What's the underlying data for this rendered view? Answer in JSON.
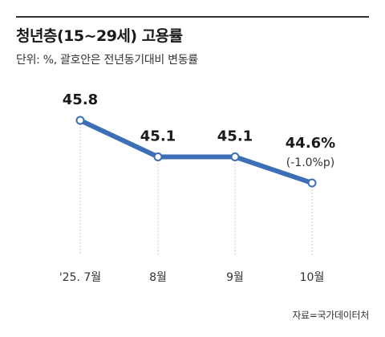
{
  "title": "청년층(15~29세) 고용률",
  "subtitle": "단위: %, 괄호안은 전년동기대비 변동률",
  "source": "자료=국가데이터처",
  "colors": {
    "line": "#3c6fb5",
    "marker_fill": "#ffffff",
    "guide": "#c8c8c8",
    "text": "#222222"
  },
  "chart_data": {
    "type": "line",
    "title": "청년층(15~29세) 고용률",
    "categories": [
      "'25. 7월",
      "8월",
      "9월",
      "10월"
    ],
    "values": [
      45.8,
      45.1,
      45.1,
      44.6
    ],
    "data_labels": [
      "45.8",
      "45.1",
      "45.1",
      "44.6%"
    ],
    "annotations": [
      {
        "index": 3,
        "text": "(-1.0%p)"
      }
    ],
    "ylim": [
      43.9,
      46.1
    ],
    "grid": false,
    "xlabel": "",
    "ylabel": ""
  }
}
